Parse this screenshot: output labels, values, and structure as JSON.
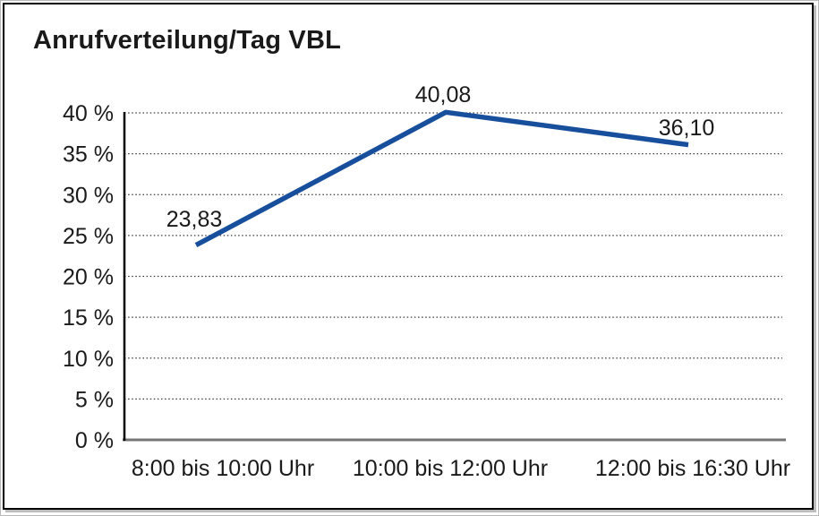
{
  "page": {
    "background": "#ffffff"
  },
  "chart_data": {
    "type": "line",
    "title": "Anrufverteilung/Tag VBL",
    "categories": [
      "8:00 bis 10:00 Uhr",
      "10:00 bis 12:00 Uhr",
      "12:00 bis 16:30 Uhr"
    ],
    "series": [
      {
        "values": [
          23.83,
          40.08,
          36.1
        ]
      }
    ],
    "data_labels": [
      "23,83",
      "40,08",
      "36,10"
    ],
    "xlabel": "",
    "ylabel": "",
    "ylim": [
      0,
      40
    ],
    "ytick_step": 5,
    "ytick_labels": [
      "0 %",
      "5 %",
      "10 %",
      "15 %",
      "20 %",
      "25 %",
      "30 %",
      "35 %",
      "40 %"
    ],
    "grid": "horizontal-dotted",
    "legend": "none",
    "colors": {
      "line": "#184f9d",
      "grid": "#3a3a3a",
      "axis": "#000000",
      "baseline": "#777777",
      "text": "#1a1a1a",
      "border": "#000000",
      "background": "#ffffff"
    }
  }
}
